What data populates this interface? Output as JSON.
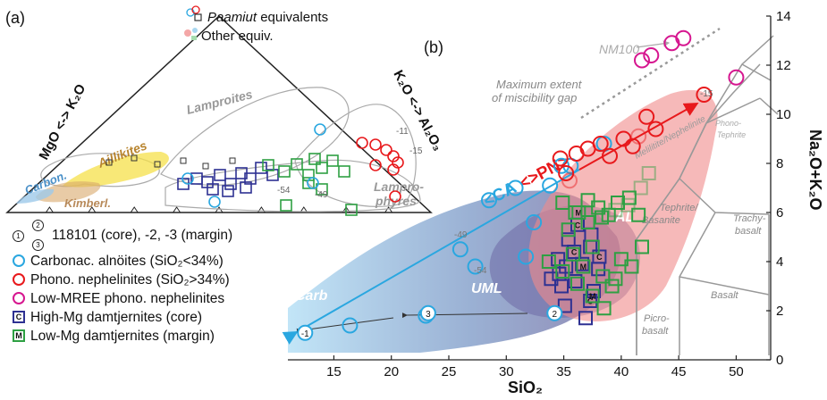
{
  "panel_labels": {
    "a": "(a)",
    "b": "(b)"
  },
  "ternary": {
    "left_axis": "MgO <-> K₂O",
    "right_axis": "K₂O <-> Al₂O₃",
    "fields": {
      "lamproites": "Lamproites",
      "aillikites": "Aillikites",
      "carbon": "Carbon.",
      "kimberl": "Kimberl.",
      "lamprophyres_1": "Lampro-",
      "lamprophyres_2": "phyres"
    },
    "legend": {
      "paamiut": "Paamiut",
      "equivalents": " equivalents",
      "other": "Other equiv."
    },
    "point_labels": {
      "m11": "-11",
      "m15": "-15",
      "m54": "-54",
      "m49": "-49",
      "c": "C",
      "m": "M",
      "two": "2"
    }
  },
  "legend": {
    "core_margin": "118101 (core), -2, -3 (margin)",
    "core_nums": [
      "1",
      "2",
      "3"
    ],
    "items": [
      {
        "label": "Carbonac. alnöites (SiO₂<34%)",
        "color": "#2aa7e0",
        "shape": "circle"
      },
      {
        "label": "Phono. nephelinites (SiO₂>34%)",
        "color": "#e8191c",
        "shape": "circle"
      },
      {
        "label": "Low-MREE phono. nephelinites",
        "color": "#d6168f",
        "shape": "circle"
      },
      {
        "label": "High-Mg damtjernites (core)",
        "color": "#2e3192",
        "shape": "square",
        "mark": "C"
      },
      {
        "label": "Low-Mg damtjernites (margin)",
        "color": "#2ea043",
        "shape": "square",
        "mark": "M"
      }
    ]
  },
  "tas": {
    "fields": {
      "melilitite": "Melilitite/Nephelinite",
      "phono1": "Phono-",
      "phono2": "Tephrite",
      "tephrite1": "Tephrite/",
      "tephrite2": "Basanite",
      "trachy1": "Trachy-",
      "trachy2": "basalt",
      "basalt": "Basalt",
      "picro1": "Picro-",
      "picro2": "basalt"
    },
    "annotations": {
      "gap1": "Maximum extent",
      "gap2": "of miscibility gap",
      "nm100": "NM100",
      "ca": "<CA",
      "pn": "<>PN>",
      "carb": "Carb",
      "uml": "UML",
      "al": "AL",
      "l15": "-15",
      "l49": "-49",
      "l54": "-54",
      "one": "-1",
      "two": "2",
      "three": "3",
      "c": "C",
      "m": "M"
    }
  },
  "chart_data": {
    "type": "scatter",
    "xlabel": "SiO₂",
    "ylabel": "Na₂O+K₂O",
    "xlim": [
      11,
      53
    ],
    "ylim": [
      0,
      14
    ],
    "xticks": [
      15,
      20,
      25,
      30,
      35,
      40,
      45,
      50
    ],
    "yticks": [
      0,
      2,
      4,
      6,
      8,
      10,
      12,
      14
    ],
    "grid": false,
    "series": [
      {
        "name": "Carbonac. alnöites (SiO₂<34%)",
        "color": "#2aa7e0",
        "x": [
          28.5,
          30.8,
          31.7,
          26,
          27.3,
          33.8,
          32.4,
          35.6,
          16.4,
          23,
          38.5,
          34.8
        ],
        "y": [
          6.5,
          7.0,
          4.2,
          4.5,
          3.8,
          7.1,
          5.6,
          7.9,
          1.4,
          1.8,
          8.8,
          7.9
        ]
      },
      {
        "name": "Phono. nephelinites (SiO₂>34%)",
        "color": "#e8191c",
        "x": [
          34.7,
          35.2,
          36.1,
          37.1,
          38.2,
          39.0,
          40.2,
          41.0,
          42.2,
          43.0,
          47.2,
          35.5,
          41.5
        ],
        "y": [
          8.2,
          7.6,
          8.4,
          8.6,
          8.8,
          8.3,
          9.0,
          8.7,
          9.9,
          9.4,
          10.8,
          7.3,
          9.1
        ]
      },
      {
        "name": "Low-MREE phono. nephelinites",
        "color": "#d6168f",
        "x": [
          41.8,
          42.6,
          44.4,
          45.4,
          50.0
        ],
        "y": [
          12.2,
          12.4,
          12.9,
          13.1,
          11.5
        ]
      },
      {
        "name": "High-Mg damtjernites (core)",
        "color": "#2e3192",
        "x": [
          34.5,
          35.2,
          35.9,
          36.6,
          37.3,
          38.0,
          33.9,
          34.8,
          35.4,
          36.2,
          37.4,
          38.1,
          35.1,
          36.9,
          37.6,
          34.6,
          36.0,
          37.3
        ],
        "y": [
          4.1,
          3.8,
          4.4,
          3.9,
          4.6,
          3.7,
          3.3,
          3.0,
          4.9,
          5.5,
          5.1,
          4.2,
          2.2,
          1.7,
          2.8,
          3.5,
          3.2,
          2.4
        ],
        "marks": [
          "",
          "",
          "C",
          "",
          "",
          "",
          "",
          "",
          "",
          "C",
          "",
          "C",
          "",
          "",
          "",
          "",
          "",
          "C"
        ]
      },
      {
        "name": "Low-Mg damtjernites (margin)",
        "color": "#2ea043",
        "x": [
          33.7,
          34.9,
          35.8,
          36.7,
          37.5,
          38.4,
          39.2,
          40.0,
          40.9,
          41.8,
          35.4,
          36.3,
          37.1,
          38.0,
          38.9,
          39.7,
          40.7,
          41.5,
          36.2,
          37.5,
          38.5,
          39.5,
          34.9,
          36.0,
          37.1,
          38.3,
          39.5,
          40.6,
          41.7,
          42.4
        ],
        "y": [
          4.0,
          3.6,
          4.3,
          3.8,
          4.6,
          3.4,
          3.0,
          4.1,
          3.8,
          4.6,
          5.3,
          6.0,
          5.6,
          6.2,
          5.9,
          6.4,
          6.6,
          5.9,
          3.1,
          2.6,
          2.1,
          3.3,
          6.4,
          6.0,
          6.5,
          5.8,
          6.1,
          6.3,
          7.0,
          7.6
        ],
        "marks": [
          "",
          "",
          "",
          "M",
          "",
          "",
          "",
          "",
          "",
          "",
          "",
          "M",
          "",
          "",
          "",
          "",
          "",
          "",
          "",
          "M",
          "",
          "",
          "",
          "",
          "",
          "",
          "",
          "",
          "",
          ""
        ]
      },
      {
        "name": "118101 (core), -2, -3 (margin)",
        "color": "#2aa7e0",
        "x": [
          12.5,
          34.2,
          23.2
        ],
        "y": [
          1.1,
          1.9,
          1.9
        ],
        "labels": [
          "-1",
          "2",
          "3"
        ]
      }
    ]
  }
}
